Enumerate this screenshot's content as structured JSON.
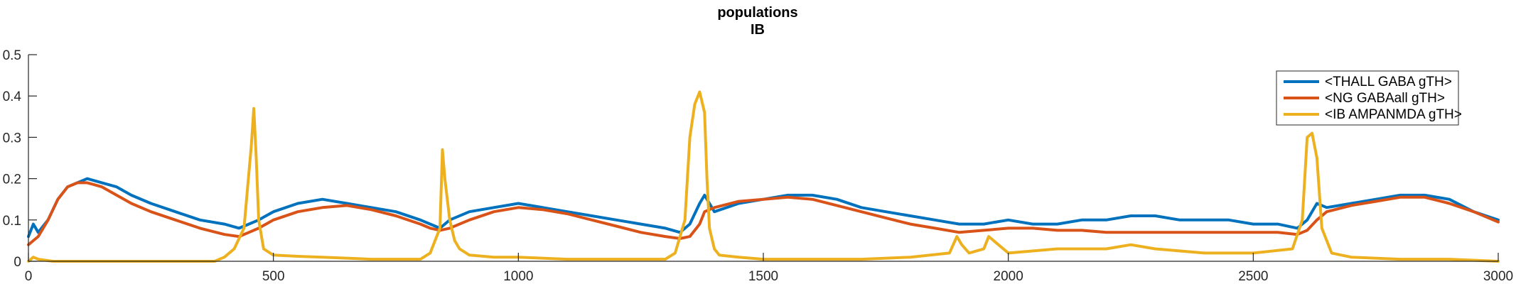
{
  "chart_data": {
    "type": "line",
    "title": "populations",
    "subtitle": "IB",
    "xlabel": "",
    "ylabel": "",
    "xlim": [
      0,
      3000
    ],
    "ylim": [
      0,
      0.5
    ],
    "xticks": [
      0,
      500,
      1000,
      1500,
      2000,
      2500,
      3000
    ],
    "yticks": [
      0,
      0.1,
      0.2,
      0.3,
      0.4,
      0.5
    ],
    "xtick_labels": [
      "0",
      "500",
      "1000",
      "1500",
      "2000",
      "2500",
      "3000"
    ],
    "ytick_labels": [
      "0",
      "0.1",
      "0.2",
      "0.3",
      "0.4",
      "0.5"
    ],
    "grid": false,
    "legend_position": "top-right",
    "series": [
      {
        "name": "<THALL GABA gTH>",
        "color": "#0072BD",
        "x": [
          0,
          10,
          20,
          40,
          60,
          80,
          100,
          120,
          150,
          180,
          210,
          250,
          300,
          350,
          400,
          430,
          450,
          470,
          500,
          550,
          600,
          650,
          700,
          750,
          800,
          820,
          840,
          860,
          900,
          950,
          1000,
          1050,
          1100,
          1150,
          1200,
          1250,
          1300,
          1330,
          1350,
          1370,
          1380,
          1400,
          1450,
          1500,
          1550,
          1600,
          1650,
          1700,
          1750,
          1800,
          1850,
          1900,
          1950,
          2000,
          2050,
          2100,
          2150,
          2200,
          2250,
          2300,
          2350,
          2400,
          2450,
          2500,
          2550,
          2590,
          2610,
          2630,
          2650,
          2700,
          2750,
          2800,
          2850,
          2900,
          2950,
          3000
        ],
        "values": [
          0.06,
          0.09,
          0.07,
          0.1,
          0.15,
          0.18,
          0.19,
          0.2,
          0.19,
          0.18,
          0.16,
          0.14,
          0.12,
          0.1,
          0.09,
          0.08,
          0.09,
          0.1,
          0.12,
          0.14,
          0.15,
          0.14,
          0.13,
          0.12,
          0.1,
          0.09,
          0.08,
          0.1,
          0.12,
          0.13,
          0.14,
          0.13,
          0.12,
          0.11,
          0.1,
          0.09,
          0.08,
          0.07,
          0.09,
          0.14,
          0.16,
          0.12,
          0.14,
          0.15,
          0.16,
          0.16,
          0.15,
          0.13,
          0.12,
          0.11,
          0.1,
          0.09,
          0.09,
          0.1,
          0.09,
          0.09,
          0.1,
          0.1,
          0.11,
          0.11,
          0.1,
          0.1,
          0.1,
          0.09,
          0.09,
          0.08,
          0.1,
          0.14,
          0.13,
          0.14,
          0.15,
          0.16,
          0.16,
          0.15,
          0.12,
          0.1
        ]
      },
      {
        "name": "<NG GABAall gTH>",
        "color": "#D95319",
        "x": [
          0,
          10,
          20,
          40,
          60,
          80,
          100,
          120,
          150,
          180,
          210,
          250,
          300,
          350,
          400,
          430,
          450,
          470,
          500,
          550,
          600,
          650,
          700,
          750,
          800,
          820,
          840,
          860,
          900,
          950,
          1000,
          1050,
          1100,
          1150,
          1200,
          1250,
          1300,
          1330,
          1350,
          1370,
          1380,
          1400,
          1450,
          1500,
          1550,
          1600,
          1650,
          1700,
          1750,
          1800,
          1850,
          1900,
          1950,
          2000,
          2050,
          2100,
          2150,
          2200,
          2250,
          2300,
          2350,
          2400,
          2450,
          2500,
          2550,
          2590,
          2610,
          2630,
          2650,
          2700,
          2750,
          2800,
          2850,
          2900,
          2950,
          3000
        ],
        "values": [
          0.04,
          0.05,
          0.06,
          0.1,
          0.15,
          0.18,
          0.19,
          0.19,
          0.18,
          0.16,
          0.14,
          0.12,
          0.1,
          0.08,
          0.065,
          0.06,
          0.07,
          0.08,
          0.1,
          0.12,
          0.13,
          0.135,
          0.125,
          0.11,
          0.09,
          0.08,
          0.075,
          0.08,
          0.1,
          0.12,
          0.13,
          0.125,
          0.115,
          0.1,
          0.085,
          0.07,
          0.06,
          0.055,
          0.06,
          0.09,
          0.12,
          0.13,
          0.145,
          0.15,
          0.155,
          0.15,
          0.135,
          0.12,
          0.105,
          0.09,
          0.08,
          0.07,
          0.075,
          0.08,
          0.08,
          0.075,
          0.075,
          0.07,
          0.07,
          0.07,
          0.07,
          0.07,
          0.07,
          0.07,
          0.07,
          0.065,
          0.075,
          0.1,
          0.12,
          0.135,
          0.145,
          0.155,
          0.155,
          0.14,
          0.12,
          0.095
        ]
      },
      {
        "name": "<IB AMPANMDA gTH>",
        "color": "#EDB120",
        "x": [
          0,
          10,
          20,
          50,
          100,
          200,
          300,
          380,
          400,
          420,
          440,
          455,
          460,
          465,
          470,
          480,
          500,
          550,
          600,
          700,
          800,
          820,
          840,
          845,
          850,
          860,
          870,
          880,
          900,
          950,
          1000,
          1100,
          1200,
          1300,
          1320,
          1340,
          1350,
          1360,
          1370,
          1380,
          1385,
          1390,
          1400,
          1410,
          1450,
          1500,
          1600,
          1700,
          1800,
          1880,
          1895,
          1905,
          1920,
          1950,
          1960,
          2000,
          2100,
          2200,
          2250,
          2300,
          2400,
          2500,
          2580,
          2600,
          2610,
          2620,
          2630,
          2640,
          2660,
          2700,
          2800,
          2900,
          3000
        ],
        "values": [
          0.0,
          0.01,
          0.005,
          0.0,
          0.0,
          0.0,
          0.0,
          0.0,
          0.01,
          0.03,
          0.08,
          0.28,
          0.37,
          0.25,
          0.1,
          0.03,
          0.015,
          0.012,
          0.01,
          0.005,
          0.005,
          0.02,
          0.08,
          0.27,
          0.2,
          0.1,
          0.05,
          0.03,
          0.015,
          0.01,
          0.01,
          0.005,
          0.005,
          0.005,
          0.02,
          0.1,
          0.3,
          0.38,
          0.41,
          0.36,
          0.2,
          0.08,
          0.03,
          0.015,
          0.01,
          0.005,
          0.005,
          0.005,
          0.01,
          0.02,
          0.06,
          0.04,
          0.02,
          0.03,
          0.06,
          0.02,
          0.03,
          0.03,
          0.04,
          0.03,
          0.02,
          0.02,
          0.03,
          0.1,
          0.3,
          0.31,
          0.25,
          0.08,
          0.02,
          0.01,
          0.005,
          0.005,
          0.0
        ]
      }
    ]
  }
}
